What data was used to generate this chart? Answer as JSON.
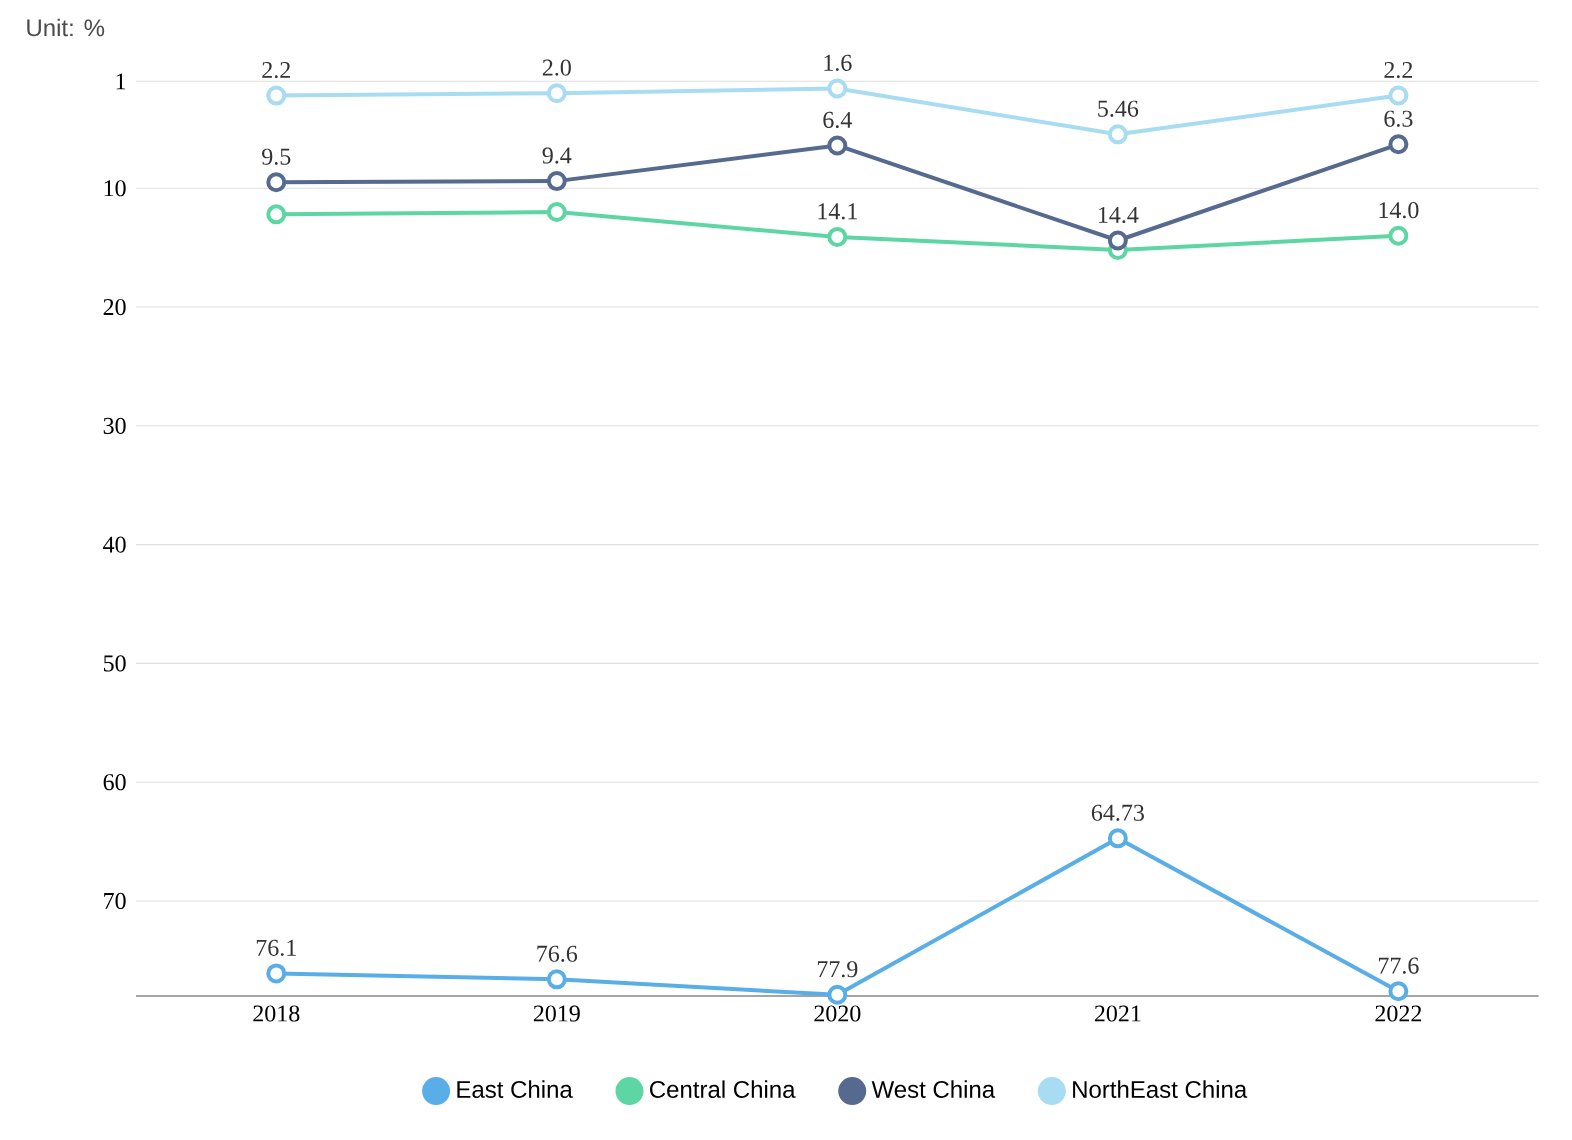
{
  "chart_data": {
    "type": "line",
    "annotations": [
      "Unit: %"
    ],
    "categories": [
      "2018",
      "2019",
      "2020",
      "2021",
      "2022"
    ],
    "series": [
      {
        "name": "East China",
        "color": "#5aaee8",
        "values": [
          76.1,
          76.6,
          77.9,
          64.73,
          77.6
        ],
        "value_labels": [
          "76.1",
          "76.6",
          "77.9",
          "64.73",
          "77.6"
        ]
      },
      {
        "name": "Central China",
        "color": "#5dd6a4",
        "values": [
          12.2,
          12.0,
          14.1,
          15.2,
          14.0
        ],
        "value_labels": [
          null,
          null,
          "14.1",
          null,
          "14.0"
        ]
      },
      {
        "name": "West China",
        "color": "#56698f",
        "values": [
          9.5,
          9.4,
          6.4,
          14.4,
          6.3
        ],
        "value_labels": [
          "9.5",
          "9.4",
          "6.4",
          "14.4",
          "6.3"
        ]
      },
      {
        "name": "NorthEast China",
        "color": "#a8dcf2",
        "values": [
          2.2,
          2.0,
          1.6,
          5.46,
          2.2
        ],
        "value_labels": [
          "2.2",
          "2.0",
          "1.6",
          "5.46",
          "2.2"
        ]
      }
    ],
    "ylim": [
      78,
      1
    ],
    "yticks": [
      1,
      10,
      20,
      30,
      40,
      50,
      60,
      70
    ],
    "grid": "y",
    "legend": "bottom",
    "marker": "circle",
    "line_style": "solid"
  }
}
